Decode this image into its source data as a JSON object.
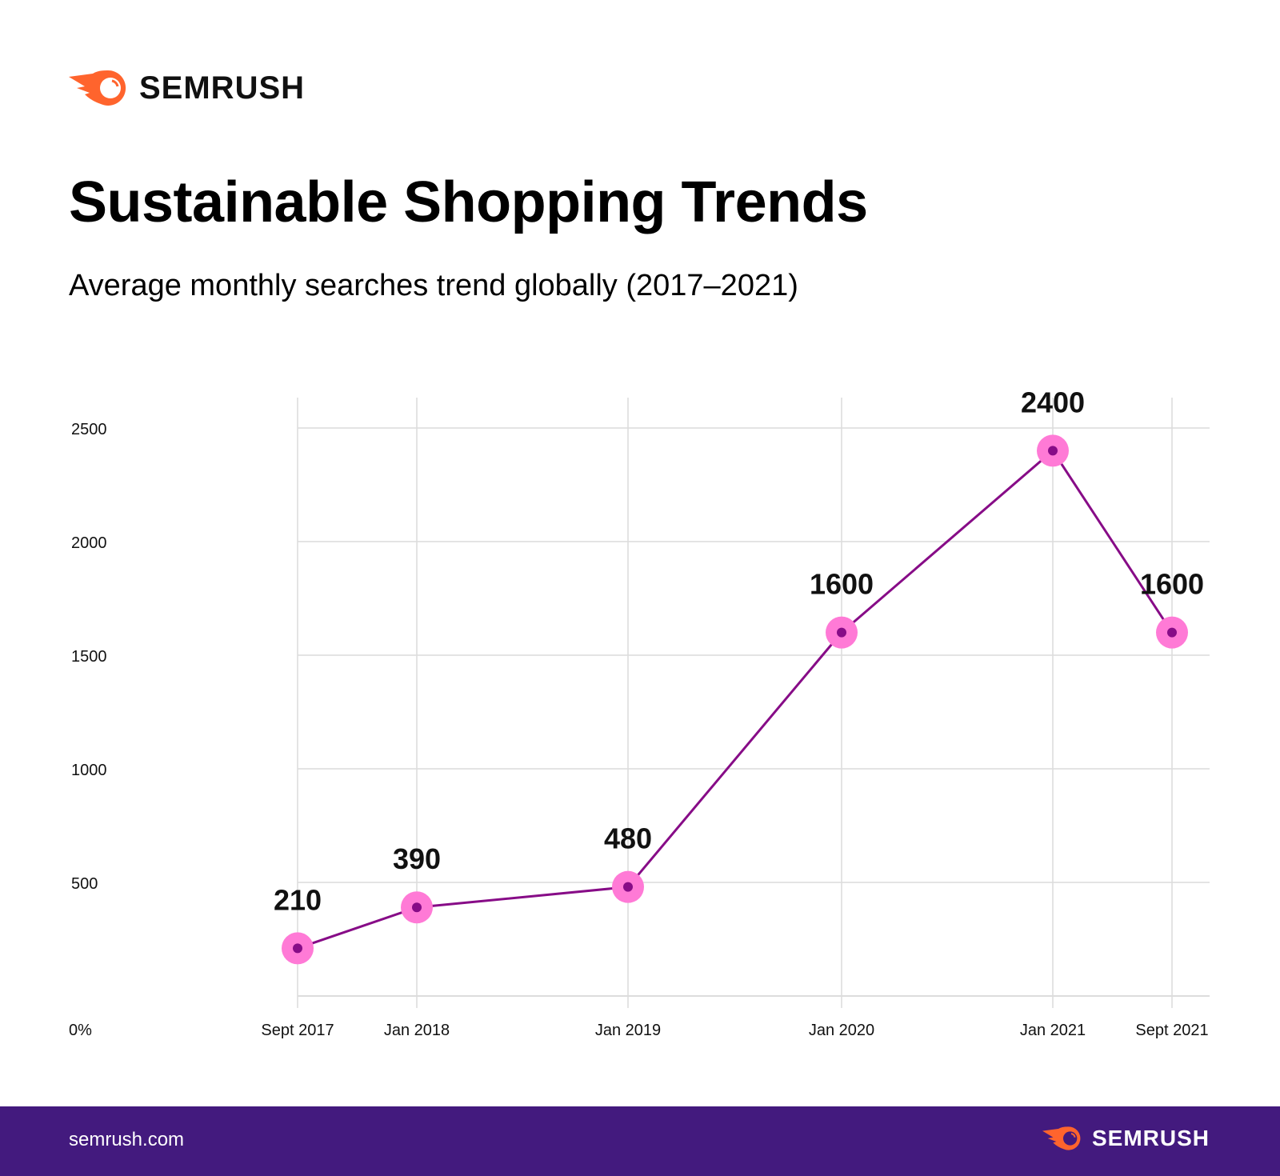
{
  "brand": {
    "name": "SEMRUSH",
    "accent": "#ff642d",
    "footer_bg": "#431a7e"
  },
  "title": "Sustainable Shopping Trends",
  "subtitle": "Average monthly searches trend globally (2017–2021)",
  "footer": {
    "url": "semrush.com"
  },
  "chart_data": {
    "type": "line",
    "x": [
      "Sept 2017",
      "Jan 2018",
      "Jan 2019",
      "Jan 2020",
      "Jan 2021",
      "Sept 2021"
    ],
    "series": [
      {
        "values": [
          210,
          390,
          480,
          1600,
          2400,
          1600
        ],
        "labels": [
          "210",
          "390",
          "480",
          "1600",
          "2400",
          "1600"
        ]
      }
    ],
    "yticks": [
      "2500",
      "2000",
      "1500",
      "1000",
      "500"
    ],
    "ytick_values": [
      2500,
      2000,
      1500,
      1000,
      500
    ],
    "origin_label": "0%",
    "ylim": [
      0,
      2500
    ],
    "grid": true,
    "line_color": "#870c87",
    "marker_color": "#ff7ad6"
  }
}
